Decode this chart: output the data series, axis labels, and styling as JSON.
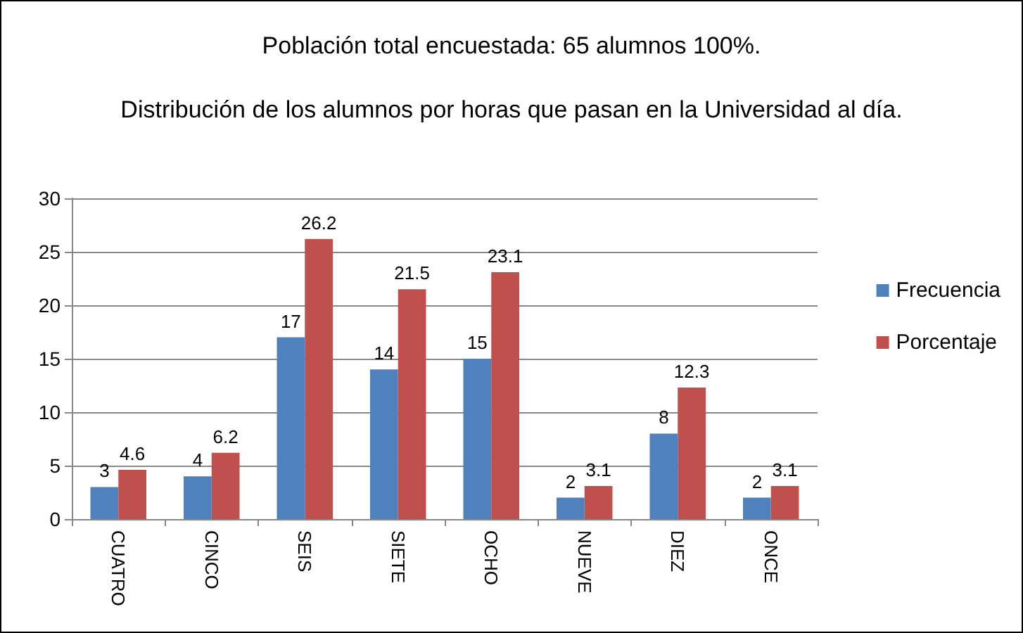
{
  "chart_data": {
    "type": "bar",
    "title": "Población total encuestada: 65 alumnos 100%.",
    "subtitle": "Distribución de los alumnos por horas que pasan en la Universidad al día.",
    "categories": [
      "CUATRO",
      "CINCO",
      "SEIS",
      "SIETE",
      "OCHO",
      "NUEVE",
      "DIEZ",
      "ONCE"
    ],
    "series": [
      {
        "name": "Frecuencia",
        "color": "#4f81bd",
        "values": [
          3,
          4,
          17,
          14,
          15,
          2,
          8,
          2
        ]
      },
      {
        "name": "Porcentaje",
        "color": "#c0504d",
        "values": [
          4.6,
          6.2,
          26.2,
          21.5,
          23.1,
          3.1,
          12.3,
          3.1
        ]
      }
    ],
    "ylim": [
      0,
      30
    ],
    "yticks": [
      0,
      5,
      10,
      15,
      20,
      25,
      30
    ],
    "grid": "y",
    "legend": "right",
    "data_labels": true
  }
}
